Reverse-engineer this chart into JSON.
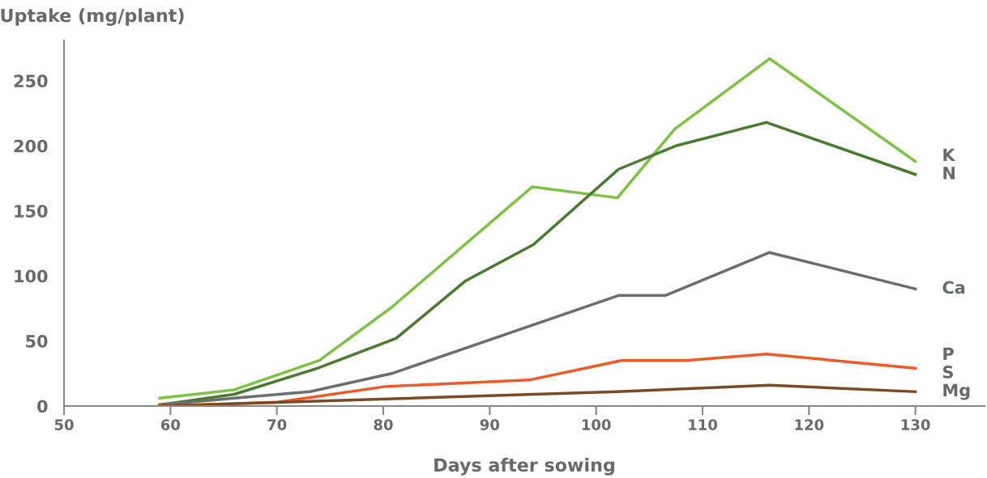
{
  "chart_data": {
    "type": "line",
    "ylabel": "Uptake (mg/plant)",
    "xlabel": "Days after sowing",
    "xlim": [
      50,
      136.5
    ],
    "ylim": [
      0,
      281
    ],
    "xticks": [
      50,
      60,
      70,
      80,
      90,
      100,
      110,
      120,
      130
    ],
    "yticks": [
      0,
      50,
      100,
      150,
      200,
      250
    ],
    "grid": false,
    "legend": false,
    "marker": "none",
    "line_style": "solid",
    "series": [
      {
        "name": "K",
        "color": "#7dc242",
        "x": [
          59,
          66,
          74,
          80.8,
          94,
          102,
          107.4,
          116.3,
          130
        ],
        "values": [
          6,
          12.5,
          35,
          76,
          168.5,
          160,
          213,
          267,
          188
        ]
      },
      {
        "name": "N",
        "color": "#4a7a32",
        "x": [
          59,
          66,
          73.8,
          81.2,
          87.7,
          94.1,
          102.1,
          107.5,
          116,
          130
        ],
        "values": [
          1,
          9,
          29,
          52,
          96,
          124,
          182,
          200,
          218,
          178
        ]
      },
      {
        "name": "Ca",
        "color": "#6b6e6e",
        "x": [
          59,
          66,
          73.1,
          80.8,
          102.1,
          106.5,
          116.3,
          130
        ],
        "values": [
          1,
          6,
          11,
          25,
          85,
          85,
          118,
          90
        ]
      },
      {
        "name": "P",
        "color": "#f05a28",
        "x": [
          59,
          70.1,
          80.2,
          93.7,
          102.4,
          108.4,
          116,
          130
        ],
        "values": [
          0,
          3,
          15,
          20,
          35,
          35,
          40,
          29
        ]
      },
      {
        "name": "Mg",
        "color": "#7a4a25",
        "x": [
          59,
          102,
          116.3,
          130
        ],
        "values": [
          0,
          11,
          16,
          11
        ]
      }
    ],
    "annotations": [
      "S"
    ]
  }
}
